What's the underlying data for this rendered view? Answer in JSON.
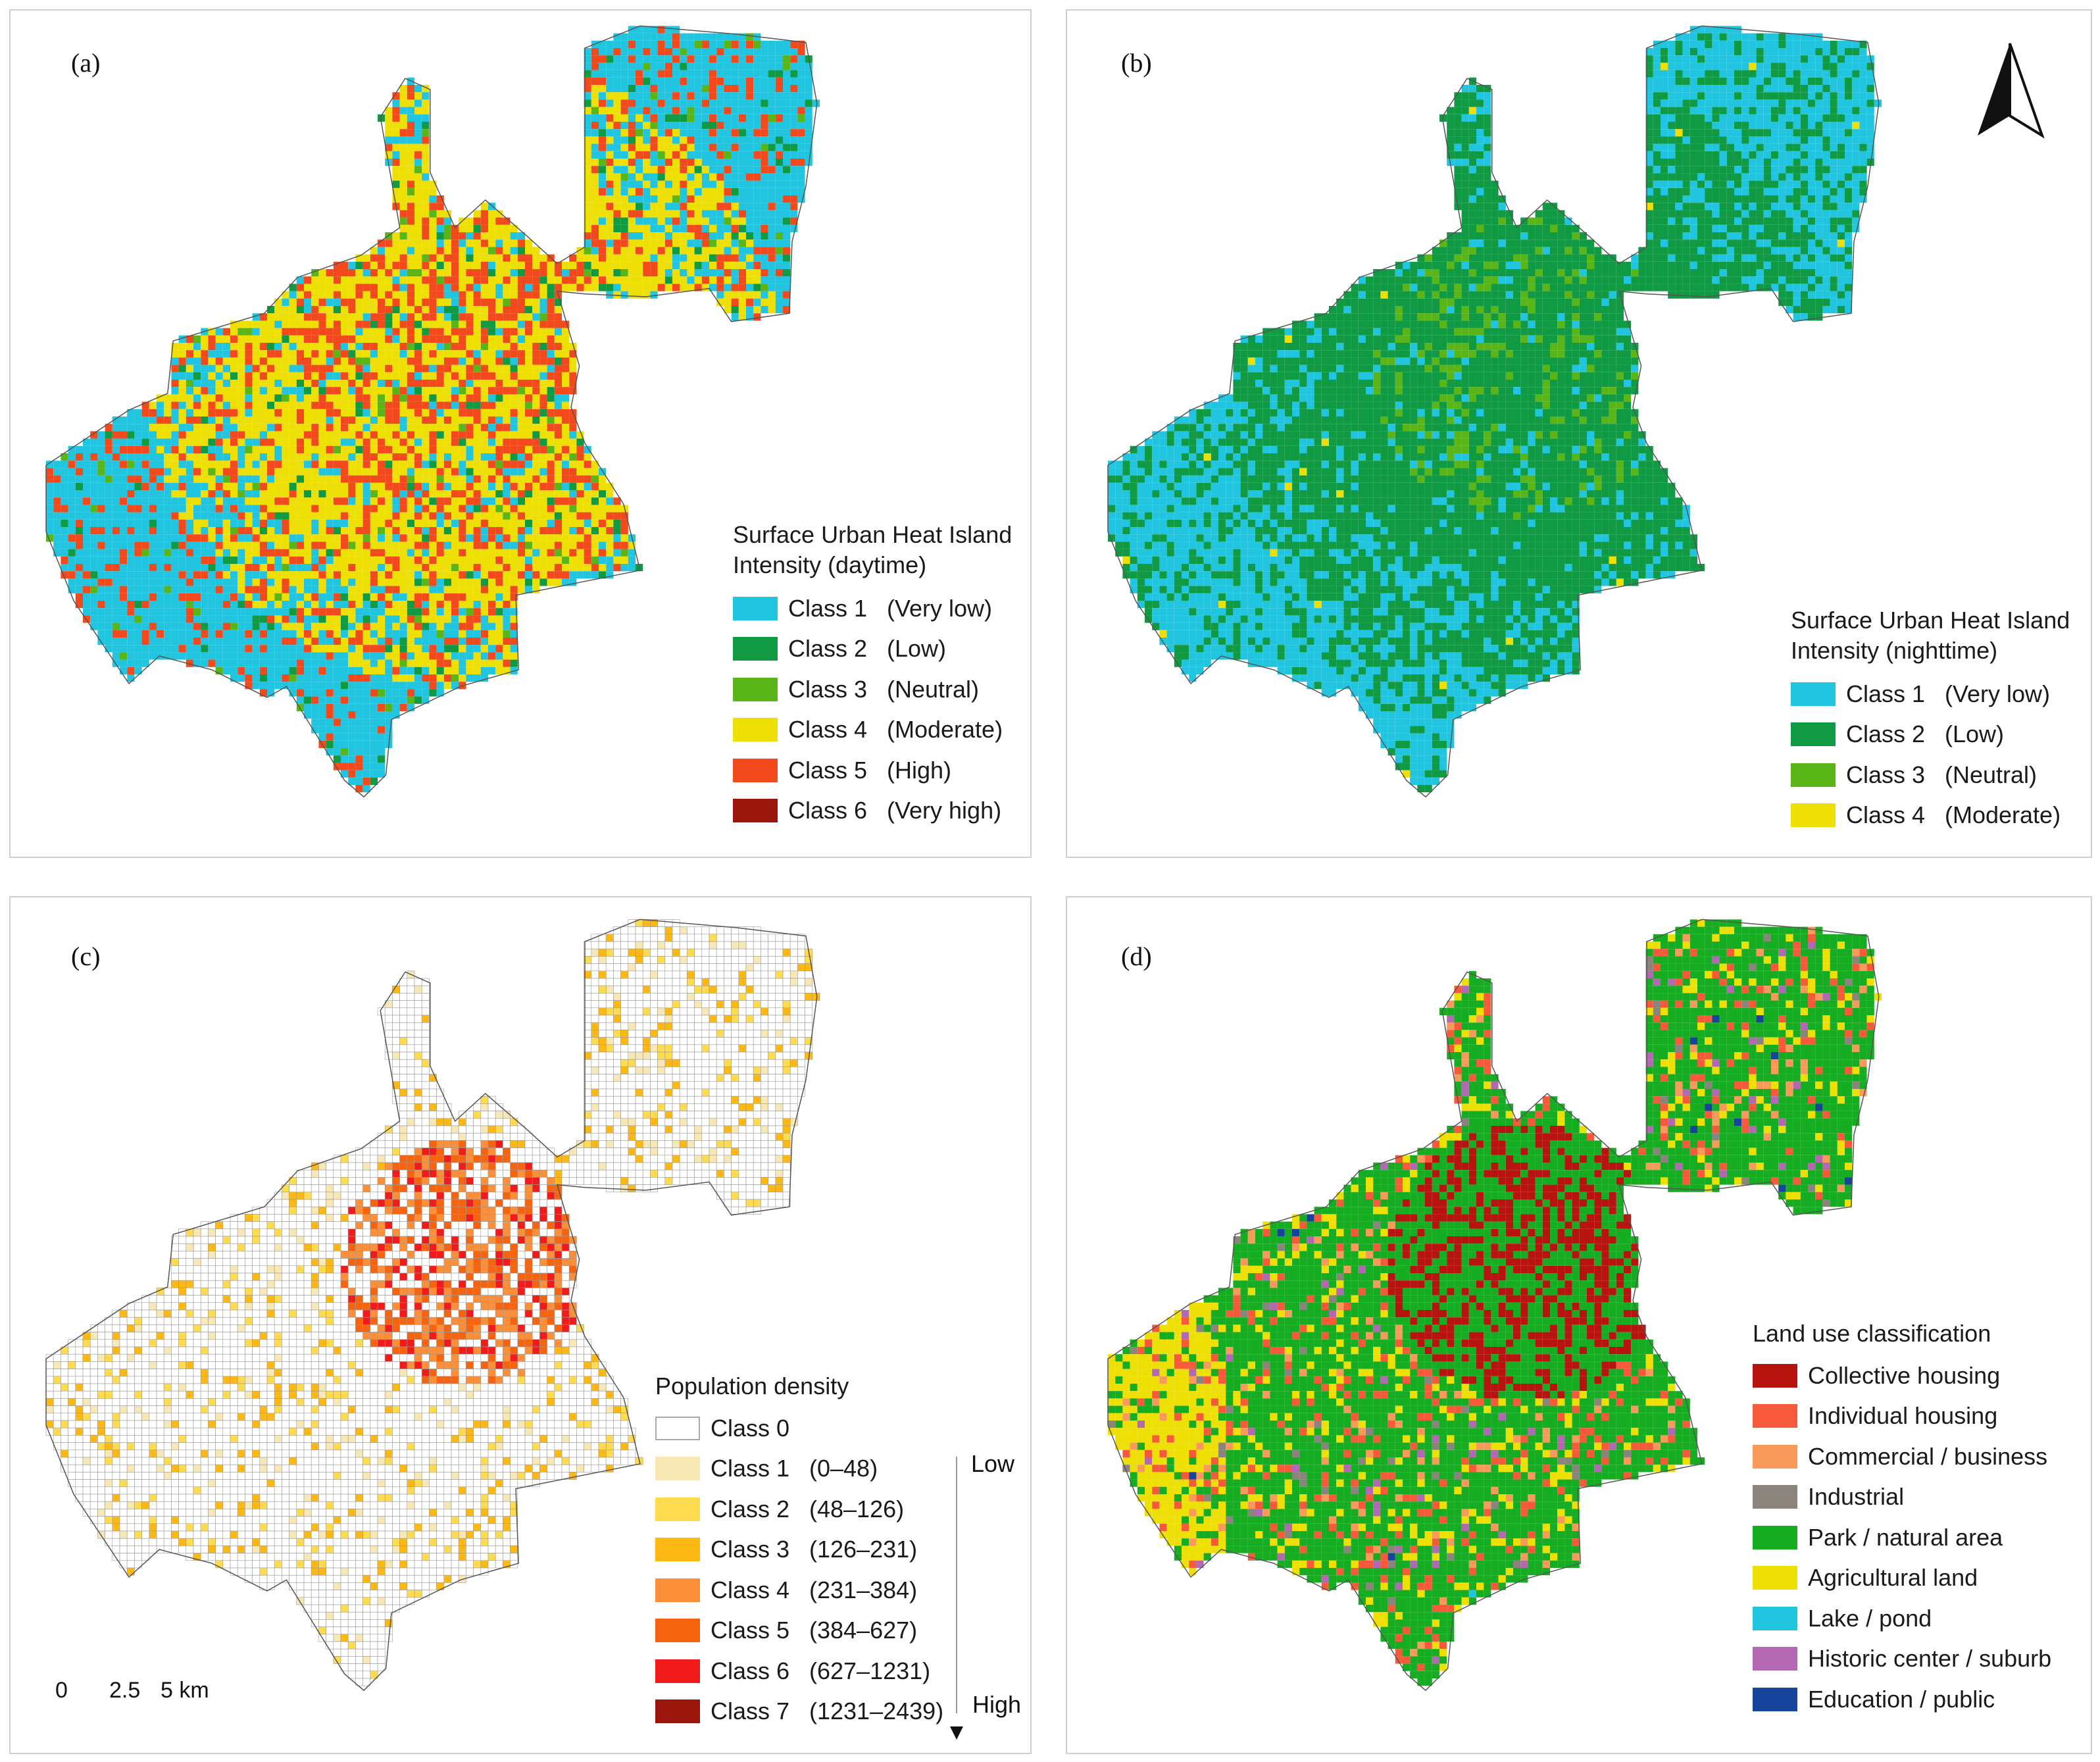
{
  "panels": {
    "a": {
      "label": "(a)",
      "legend_title_1": "Surface Urban Heat Island",
      "legend_title_2": "Intensity (daytime)",
      "classes": [
        {
          "name": "Class 1",
          "desc": "(Very low)",
          "color": "#22c5e0"
        },
        {
          "name": "Class 2",
          "desc": "(Low)",
          "color": "#0f9a43"
        },
        {
          "name": "Class 3",
          "desc": "(Neutral)",
          "color": "#5ab518"
        },
        {
          "name": "Class 4",
          "desc": "(Moderate)",
          "color": "#eedf05"
        },
        {
          "name": "Class 5",
          "desc": "(High)",
          "color": "#f24a1d"
        },
        {
          "name": "Class 6",
          "desc": "(Very high)",
          "color": "#9a150b"
        }
      ]
    },
    "b": {
      "label": "(b)",
      "legend_title_1": "Surface Urban Heat Island",
      "legend_title_2": "Intensity (nighttime)",
      "classes": [
        {
          "name": "Class 1",
          "desc": "(Very low)",
          "color": "#22c5e0"
        },
        {
          "name": "Class 2",
          "desc": "(Low)",
          "color": "#0f9a43"
        },
        {
          "name": "Class 3",
          "desc": "(Neutral)",
          "color": "#5ab518"
        },
        {
          "name": "Class 4",
          "desc": "(Moderate)",
          "color": "#eedf05"
        }
      ]
    },
    "c": {
      "label": "(c)",
      "legend_title": "Population density",
      "classes": [
        {
          "name": "Class 0",
          "desc": "",
          "color": "#ffffff"
        },
        {
          "name": "Class 1",
          "desc": "(0–48)",
          "color": "#f7e8b5"
        },
        {
          "name": "Class 2",
          "desc": "(48–126)",
          "color": "#fedb4f"
        },
        {
          "name": "Class 3",
          "desc": "(126–231)",
          "color": "#fdb813"
        },
        {
          "name": "Class 4",
          "desc": "(231–384)",
          "color": "#fb8f3a"
        },
        {
          "name": "Class 5",
          "desc": "(384–627)",
          "color": "#f6640f"
        },
        {
          "name": "Class 6",
          "desc": "(627–1231)",
          "color": "#f21b1b"
        },
        {
          "name": "Class 7",
          "desc": "(1231–2439)",
          "color": "#9a150b"
        }
      ],
      "low_label": "Low",
      "high_label": "High",
      "scale": {
        "t0": "0",
        "t1": "2.5",
        "t2": "5 km"
      }
    },
    "d": {
      "label": "(d)",
      "legend_title": "Land use classification",
      "classes": [
        {
          "name": "Collective housing",
          "color": "#b8140f"
        },
        {
          "name": "Individual housing",
          "color": "#f65a3a"
        },
        {
          "name": "Commercial / business",
          "color": "#f89a5a"
        },
        {
          "name": "Industrial",
          "color": "#8b847d"
        },
        {
          "name": "Park / natural area",
          "color": "#16ad22"
        },
        {
          "name": "Agricultural land",
          "color": "#eedf05"
        },
        {
          "name": "Lake / pond",
          "color": "#22c5e0"
        },
        {
          "name": "Historic center / suburb",
          "color": "#b368b2"
        },
        {
          "name": "Education / public",
          "color": "#16449a"
        }
      ]
    }
  }
}
